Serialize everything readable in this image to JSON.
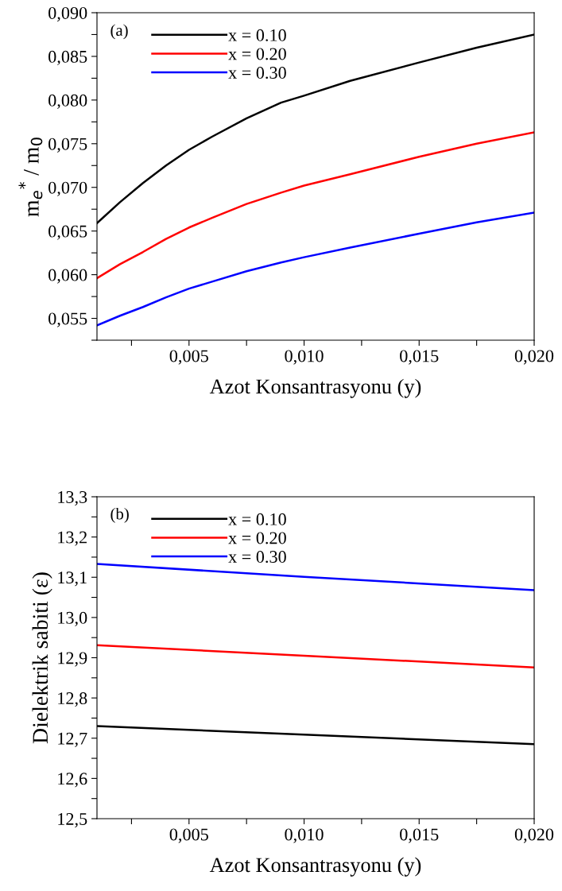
{
  "chart_data": [
    {
      "type": "line",
      "xlabel": "Azot Konsantrasyonu (y)",
      "ylabel": "m$_{e}$$^{*}$ / m$_{0}$",
      "annotations": [
        "(a)"
      ],
      "legend": "top left",
      "grid": false,
      "xlim": [
        0.001,
        0.02
      ],
      "ylim": [
        0.0525,
        0.09
      ],
      "xticks": [
        {
          "value": 0.0025,
          "label": null
        },
        {
          "value": 0.005,
          "label": "0,005"
        },
        {
          "value": 0.0075,
          "label": null
        },
        {
          "value": 0.01,
          "label": "0,010"
        },
        {
          "value": 0.0125,
          "label": null
        },
        {
          "value": 0.015,
          "label": "0,015"
        },
        {
          "value": 0.0175,
          "label": null
        },
        {
          "value": 0.02,
          "label": "0,020"
        }
      ],
      "yticks": [
        {
          "value": 0.0525,
          "label": null
        },
        {
          "value": 0.055,
          "label": "0,055"
        },
        {
          "value": 0.0575,
          "label": null
        },
        {
          "value": 0.06,
          "label": "0,060"
        },
        {
          "value": 0.0625,
          "label": null
        },
        {
          "value": 0.065,
          "label": "0,065"
        },
        {
          "value": 0.0675,
          "label": null
        },
        {
          "value": 0.07,
          "label": "0,070"
        },
        {
          "value": 0.0725,
          "label": null
        },
        {
          "value": 0.075,
          "label": "0,075"
        },
        {
          "value": 0.0775,
          "label": null
        },
        {
          "value": 0.08,
          "label": "0,080"
        },
        {
          "value": 0.0825,
          "label": null
        },
        {
          "value": 0.085,
          "label": "0,085"
        },
        {
          "value": 0.0875,
          "label": null
        },
        {
          "value": 0.09,
          "label": "0,090"
        }
      ],
      "x": [
        0.001,
        0.002,
        0.003,
        0.004,
        0.005,
        0.006,
        0.0075,
        0.009,
        0.01,
        0.012,
        0.015,
        0.0175,
        0.02
      ],
      "series": [
        {
          "name": "x = 0.10",
          "color": "#000000",
          "values": [
            0.0659,
            0.0683,
            0.0705,
            0.0725,
            0.0743,
            0.0758,
            0.0779,
            0.0797,
            0.0805,
            0.0822,
            0.0843,
            0.086,
            0.0875
          ]
        },
        {
          "name": "x = 0.20",
          "color": "#ff0000",
          "values": [
            0.0596,
            0.0612,
            0.0626,
            0.0641,
            0.0654,
            0.0665,
            0.0681,
            0.0694,
            0.0702,
            0.0715,
            0.0735,
            0.075,
            0.0763
          ]
        },
        {
          "name": "x = 0.30",
          "color": "#0000ff",
          "values": [
            0.0542,
            0.0553,
            0.0563,
            0.0574,
            0.0584,
            0.0592,
            0.0604,
            0.0614,
            0.062,
            0.0631,
            0.0647,
            0.066,
            0.0671
          ]
        }
      ]
    },
    {
      "type": "line",
      "xlabel": "Azot Konsantrasyonu (y)",
      "ylabel": "Dielektrik sabiti (ε)",
      "annotations": [
        "(b)"
      ],
      "legend": "top left",
      "grid": false,
      "xlim": [
        0.001,
        0.02
      ],
      "ylim": [
        12.5,
        13.3
      ],
      "xticks": [
        {
          "value": 0.0025,
          "label": null
        },
        {
          "value": 0.005,
          "label": "0,005"
        },
        {
          "value": 0.0075,
          "label": null
        },
        {
          "value": 0.01,
          "label": "0,010"
        },
        {
          "value": 0.0125,
          "label": null
        },
        {
          "value": 0.015,
          "label": "0,015"
        },
        {
          "value": 0.0175,
          "label": null
        },
        {
          "value": 0.02,
          "label": "0,020"
        }
      ],
      "yticks": [
        {
          "value": 12.5,
          "label": "12,5"
        },
        {
          "value": 12.55,
          "label": null
        },
        {
          "value": 12.6,
          "label": "12,6"
        },
        {
          "value": 12.65,
          "label": null
        },
        {
          "value": 12.7,
          "label": "12,7"
        },
        {
          "value": 12.75,
          "label": null
        },
        {
          "value": 12.8,
          "label": "12,8"
        },
        {
          "value": 12.85,
          "label": null
        },
        {
          "value": 12.9,
          "label": "12,9"
        },
        {
          "value": 12.95,
          "label": null
        },
        {
          "value": 13.0,
          "label": "13,0"
        },
        {
          "value": 13.05,
          "label": null
        },
        {
          "value": 13.1,
          "label": "13,1"
        },
        {
          "value": 13.15,
          "label": null
        },
        {
          "value": 13.2,
          "label": "13,2"
        },
        {
          "value": 13.25,
          "label": null
        },
        {
          "value": 13.3,
          "label": "13,3"
        }
      ],
      "x": [
        0.001,
        0.01,
        0.02
      ],
      "series": [
        {
          "name": "x = 0.10",
          "color": "#000000",
          "values": [
            12.73,
            12.709,
            12.685
          ]
        },
        {
          "name": "x = 0.20",
          "color": "#ff0000",
          "values": [
            12.931,
            12.905,
            12.876
          ]
        },
        {
          "name": "x = 0.30",
          "color": "#0000ff",
          "values": [
            13.133,
            13.101,
            13.068
          ]
        }
      ]
    }
  ]
}
